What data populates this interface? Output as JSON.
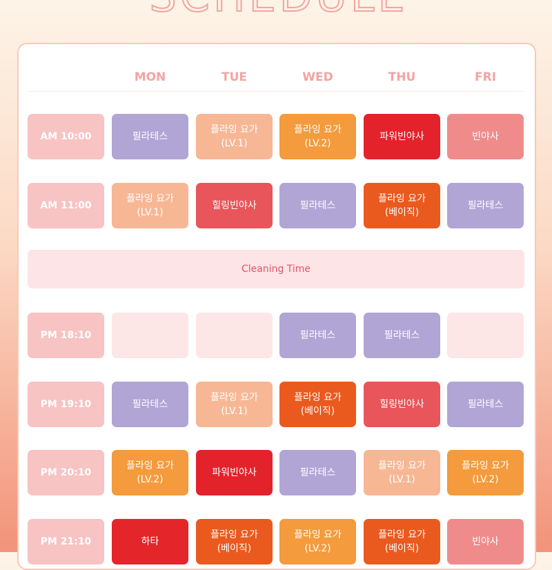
{
  "title": "SCHEDULE",
  "days": [
    "MON",
    "TUE",
    "WED",
    "THU",
    "FRI"
  ],
  "rows": [
    {
      "time": "AM 10:00",
      "cells": [
        {
          "lines": [
            "필라테스"
          ],
          "color": "#b1a5d5"
        },
        {
          "lines": [
            "플라잉 요가",
            "(LV.1)"
          ],
          "color": "#f7b795"
        },
        {
          "lines": [
            "플라잉 요가",
            "(LV.2)"
          ],
          "color": "#f39b3d"
        },
        {
          "lines": [
            "파워빈야사"
          ],
          "color": "#e4222b"
        },
        {
          "lines": [
            "빈야사"
          ],
          "color": "#f08b8b"
        }
      ]
    },
    {
      "time": "AM 11:00",
      "cells": [
        {
          "lines": [
            "플라잉 요가",
            "(LV.1)"
          ],
          "color": "#f7b795"
        },
        {
          "lines": [
            "힐링빈야사"
          ],
          "color": "#e8555a"
        },
        {
          "lines": [
            "필라테스"
          ],
          "color": "#b1a5d5"
        },
        {
          "lines": [
            "플라잉 요가",
            "(베이직)"
          ],
          "color": "#ea5a1e"
        },
        {
          "lines": [
            "필라테스"
          ],
          "color": "#b1a5d5"
        }
      ]
    },
    {
      "break": "Cleaning Time"
    },
    {
      "time": "PM 18:10",
      "cells": [
        {
          "color": "#fde6e6"
        },
        {
          "color": "#fde6e6"
        },
        {
          "lines": [
            "필라테스"
          ],
          "color": "#b1a5d5"
        },
        {
          "lines": [
            "필라테스"
          ],
          "color": "#b1a5d5"
        },
        {
          "color": "#fde6e6"
        }
      ]
    },
    {
      "time": "PM 19:10",
      "cells": [
        {
          "lines": [
            "필라테스"
          ],
          "color": "#b1a5d5"
        },
        {
          "lines": [
            "플라잉 요가",
            "(LV.1)"
          ],
          "color": "#f7b795"
        },
        {
          "lines": [
            "플라잉 요가",
            "(베이직)"
          ],
          "color": "#ea5a1e"
        },
        {
          "lines": [
            "힐링빈야사"
          ],
          "color": "#e8555a"
        },
        {
          "lines": [
            "필라테스"
          ],
          "color": "#b1a5d5"
        }
      ]
    },
    {
      "time": "PM 20:10",
      "cells": [
        {
          "lines": [
            "플라잉 요가",
            "(LV.2)"
          ],
          "color": "#f39b3d"
        },
        {
          "lines": [
            "파워빈야사"
          ],
          "color": "#e4222b"
        },
        {
          "lines": [
            "필라테스"
          ],
          "color": "#b1a5d5"
        },
        {
          "lines": [
            "플라잉 요가",
            "(LV.1)"
          ],
          "color": "#f7b795"
        },
        {
          "lines": [
            "플라잉 요가",
            "(LV.2)"
          ],
          "color": "#f39b3d"
        }
      ]
    },
    {
      "time": "PM 21:10",
      "cells": [
        {
          "lines": [
            "하타"
          ],
          "color": "#e4262b"
        },
        {
          "lines": [
            "플라잉 요가",
            "(베이직)"
          ],
          "color": "#ea5a1e"
        },
        {
          "lines": [
            "플라잉 요가",
            "(LV.2)"
          ],
          "color": "#f39b3d"
        },
        {
          "lines": [
            "플라잉 요가",
            "(베이직)"
          ],
          "color": "#ea5a1e"
        },
        {
          "lines": [
            "빈야사"
          ],
          "color": "#f08b8b"
        }
      ]
    }
  ]
}
